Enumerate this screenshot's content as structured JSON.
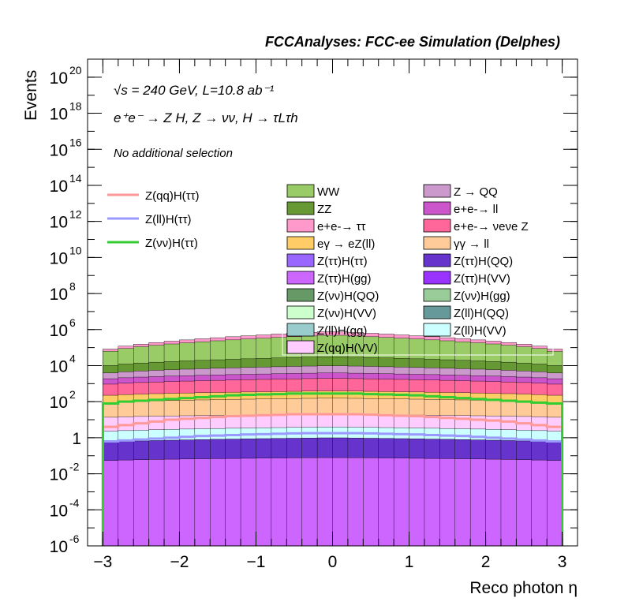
{
  "chart_data": {
    "type": "bar",
    "title": "FCCAnalyses: FCC-ee Simulation (Delphes)",
    "xlabel": "Reco photon η",
    "ylabel": "Events",
    "xlim": [
      -3.2,
      3.2
    ],
    "ylim_log10": [
      -6,
      21
    ],
    "log_y": true,
    "x_ticks": [
      "−3",
      "−2",
      "−1",
      "0",
      "1",
      "2",
      "3"
    ],
    "y_ticks": [
      {
        "base": "10",
        "exp": "-6"
      },
      {
        "base": "10",
        "exp": "-4"
      },
      {
        "base": "10",
        "exp": "-2"
      },
      {
        "base": "1",
        "exp": ""
      },
      {
        "base": "10",
        "exp": "2"
      },
      {
        "base": "10",
        "exp": "4"
      },
      {
        "base": "10",
        "exp": "6"
      },
      {
        "base": "10",
        "exp": "8"
      },
      {
        "base": "10",
        "exp": "10"
      },
      {
        "base": "10",
        "exp": "12"
      },
      {
        "base": "10",
        "exp": "14"
      },
      {
        "base": "10",
        "exp": "16"
      },
      {
        "base": "10",
        "exp": "18"
      },
      {
        "base": "10",
        "exp": "20"
      }
    ],
    "annotations": {
      "energy_line": "√s = 240 GeV, L=10.8 ab⁻¹",
      "process_line": "e⁺e⁻ → Z H, Z → νν, H → τLτh",
      "selection": "No additional selection"
    },
    "bins": {
      "x_min": -3.0,
      "x_max": 3.0,
      "n": 30
    },
    "background_totals_log10": {
      "description": "log10 of cumulative stacked background top per band, center shape",
      "bands": [
        {
          "name": "WW",
          "color": "#99cc66",
          "center_log10": 5.7,
          "edge_log10": 4.6
        },
        {
          "name": "e+e- → ττ",
          "color": "#ff99cc",
          "center_log10": 5.9,
          "edge_log10": 4.7
        },
        {
          "name": "ZZ",
          "color": "#669933",
          "center_log10": 4.5,
          "edge_log10": 3.9
        },
        {
          "name": "Z → QQ",
          "color": "#cc99cc",
          "center_log10": 4.0,
          "edge_log10": 3.5
        },
        {
          "name": "e+e- → ll",
          "color": "#cc55cc",
          "center_log10": 3.6,
          "edge_log10": 3.2
        },
        {
          "name": "e+e- → νeνe Z",
          "color": "#ff6699",
          "center_log10": 3.3,
          "edge_log10": 2.9
        },
        {
          "name": "eγ → eZ(ll)",
          "color": "#ffcc66",
          "center_log10": 2.6,
          "edge_log10": 2.3
        },
        {
          "name": "γγ → ll",
          "color": "#ffcc99",
          "center_log10": 2.2,
          "edge_log10": 1.9
        },
        {
          "name": "Z(qq)H(VV)",
          "color": "#ffccff",
          "center_log10": 1.3,
          "edge_log10": 1.1
        },
        {
          "name": "Z(ll)H(VV)",
          "color": "#ccffff",
          "center_log10": 0.6,
          "edge_log10": 0.3
        },
        {
          "name": "Z(ττ)H(QQ)",
          "color": "#6633cc",
          "center_log10": 0.0,
          "edge_log10": -0.3
        },
        {
          "name": "Z(ττ)H(gg)",
          "color": "#cc66ff",
          "center_log10": -1.1,
          "edge_log10": -1.3
        }
      ]
    },
    "signal_lines": [
      {
        "name": "Z(qq)H(ττ)",
        "color": "#ff9999",
        "values_log10": [
          0.6,
          0.7,
          0.8,
          0.9,
          1.0,
          1.05,
          1.1,
          1.15,
          1.2,
          1.22,
          1.25,
          1.27,
          1.3,
          1.3,
          1.3,
          1.3,
          1.3,
          1.28,
          1.25,
          1.22,
          1.2,
          1.15,
          1.1,
          1.05,
          1.0,
          0.95,
          0.9,
          0.8,
          0.7,
          0.6
        ]
      },
      {
        "name": "Z(ll)H(ττ)",
        "color": "#9999ff",
        "values_log10": [
          -0.2,
          -0.15,
          -0.1,
          -0.05,
          0.0,
          0.05,
          0.1,
          0.12,
          0.15,
          0.18,
          0.2,
          0.22,
          0.24,
          0.25,
          0.25,
          0.25,
          0.25,
          0.24,
          0.22,
          0.2,
          0.18,
          0.15,
          0.12,
          0.1,
          0.05,
          0.0,
          -0.05,
          -0.1,
          -0.15,
          -0.2
        ]
      },
      {
        "name": "Z(νν)H(ττ)",
        "color": "#33cc33",
        "values_log10": [
          1.9,
          2.0,
          2.05,
          2.1,
          2.15,
          2.2,
          2.25,
          2.3,
          2.35,
          2.38,
          2.4,
          2.42,
          2.45,
          2.45,
          2.45,
          2.45,
          2.45,
          2.42,
          2.4,
          2.38,
          2.35,
          2.3,
          2.25,
          2.2,
          2.15,
          2.1,
          2.05,
          2.0,
          1.95,
          1.9
        ]
      }
    ],
    "legend_signals": [
      {
        "label": "Z(qq)H(ττ)",
        "color": "#ff9999"
      },
      {
        "label": "Z(ll)H(ττ)",
        "color": "#9999ff"
      },
      {
        "label": "Z(νν)H(ττ)",
        "color": "#33cc33"
      }
    ],
    "legend_backgrounds_left": [
      {
        "label": "WW",
        "color": "#99cc66"
      },
      {
        "label": "ZZ",
        "color": "#669933"
      },
      {
        "label": "e+e-→ ττ",
        "color": "#ff99cc"
      },
      {
        "label": "eγ → eZ(ll)",
        "color": "#ffcc66"
      },
      {
        "label": "Z(ττ)H(ττ)",
        "color": "#9966ff"
      },
      {
        "label": "Z(ττ)H(gg)",
        "color": "#cc66ff"
      },
      {
        "label": "Z(νν)H(QQ)",
        "color": "#669966"
      },
      {
        "label": "Z(νν)H(VV)",
        "color": "#ccffcc"
      },
      {
        "label": "Z(ll)H(gg)",
        "color": "#99cccc"
      },
      {
        "label": "Z(qq)H(VV)",
        "color": "#ffccff"
      }
    ],
    "legend_backgrounds_right": [
      {
        "label": "Z → QQ",
        "color": "#cc99cc"
      },
      {
        "label": "e+e-→ ll",
        "color": "#cc55cc"
      },
      {
        "label": "e+e-→ νeνe Z",
        "color": "#ff6699"
      },
      {
        "label": "γγ → ll",
        "color": "#ffcc99"
      },
      {
        "label": "Z(ττ)H(QQ)",
        "color": "#6633cc"
      },
      {
        "label": "Z(ττ)H(VV)",
        "color": "#9933ff"
      },
      {
        "label": "Z(νν)H(gg)",
        "color": "#99cc99"
      },
      {
        "label": "Z(ll)H(QQ)",
        "color": "#669999"
      },
      {
        "label": "Z(ll)H(VV)",
        "color": "#ccffff"
      }
    ]
  }
}
